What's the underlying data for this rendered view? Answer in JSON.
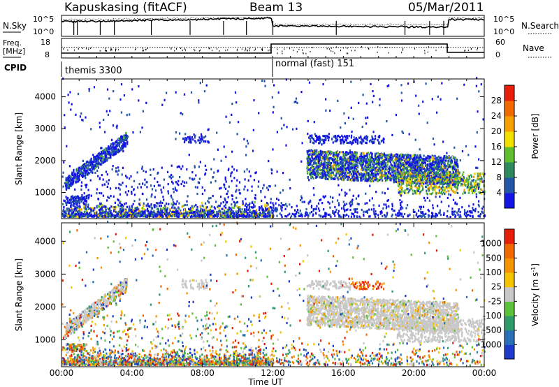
{
  "header": {
    "station": "Kapuskasing (fitACF)",
    "beam": "Beam 13",
    "date": "05/Mar/2011"
  },
  "panels": {
    "noise": {
      "left_label": "N.Sky",
      "left_ticks": [
        "10^5",
        "10^0"
      ],
      "right_label": "N.Search",
      "right_ticks": [
        "10^5",
        "10^0"
      ]
    },
    "freq": {
      "left_label_1": "Freq.",
      "left_label_2": "[MHz]",
      "left_ticks": [
        "18",
        "8"
      ],
      "right_label": "Nave",
      "right_ticks": [
        "60",
        "0"
      ]
    },
    "cpid": {
      "label": "CPID",
      "mode_1": "themis 3300",
      "mode_2": "normal (fast) 151"
    }
  },
  "chart_data": [
    {
      "type": "heatmap",
      "title": "Power",
      "xlabel": "Time UT",
      "ylabel": "Slant Range [km]",
      "x_ticks": [
        "00:00",
        "04:00",
        "08:00",
        "12:00",
        "16:00",
        "20:00",
        "00:00"
      ],
      "y_ticks": [
        "1000",
        "2000",
        "3000",
        "4000"
      ],
      "xlim_hours": [
        0,
        24
      ],
      "ylim_km": [
        180,
        4560
      ],
      "colorbar": {
        "label": "Power [dB]",
        "ticks": [
          "4",
          "8",
          "12",
          "16",
          "20",
          "24",
          "28"
        ],
        "range": [
          0,
          30
        ],
        "colors": [
          "#1414e6",
          "#2456a8",
          "#2e8a5e",
          "#5fbf2e",
          "#f2df00",
          "#f6a000",
          "#f06a00",
          "#e61e0a"
        ]
      },
      "features": [
        {
          "t_start": 0.0,
          "t_end": 12.0,
          "range_km": [
            200,
            600
          ],
          "level": "low-medium",
          "density": "dense"
        },
        {
          "t_start": 0.2,
          "t_end": 3.7,
          "range_km": [
            600,
            3000
          ],
          "level": "low",
          "description": "rising echo band"
        },
        {
          "t_start": 6.8,
          "t_end": 8.3,
          "range_km": [
            2500,
            3000
          ],
          "level": "low"
        },
        {
          "t_start": 12.0,
          "t_end": 24.0,
          "range_km": [
            200,
            800
          ],
          "level": "low",
          "density": "sparse"
        },
        {
          "t_start": 13.9,
          "t_end": 22.5,
          "range_km": [
            1300,
            2400
          ],
          "level": "low-high",
          "description": "broad band"
        },
        {
          "t_start": 19.0,
          "t_end": 24.0,
          "range_km": [
            800,
            1600
          ],
          "level": "high"
        },
        {
          "t_start": 13.9,
          "t_end": 18.3,
          "range_km": [
            2450,
            2800
          ],
          "level": "low"
        }
      ]
    },
    {
      "type": "heatmap",
      "title": "Velocity",
      "xlabel": "Time UT",
      "ylabel": "Slant Range [km]",
      "x_ticks": [
        "00:00",
        "04:00",
        "08:00",
        "12:00",
        "16:00",
        "20:00",
        "00:00"
      ],
      "y_ticks": [
        "1000",
        "2000",
        "3000",
        "4000"
      ],
      "xlim_hours": [
        0,
        24
      ],
      "ylim_km": [
        180,
        4560
      ],
      "colorbar": {
        "label": "Velocity",
        "units": "[m s",
        "units_exp": "-1",
        "units_close": "]",
        "ticks": [
          "1000",
          "500",
          "100",
          "25",
          "-25",
          "-100",
          "-500",
          "-1000"
        ],
        "range": [
          -1200,
          1200
        ],
        "colors": [
          "#1e3ac8",
          "#2a70b8",
          "#2f9a6a",
          "#5bc23a",
          "#c8c8c8",
          "#f5c400",
          "#f59400",
          "#f06a00",
          "#e61e0a"
        ]
      },
      "features": [
        {
          "t_start": 0.0,
          "t_end": 12.0,
          "range_km": [
            200,
            600
          ],
          "level": "mixed",
          "density": "dense"
        },
        {
          "t_start": 0.8,
          "t_end": 4.0,
          "range_km": [
            1500,
            3000
          ],
          "level": "near-zero"
        },
        {
          "t_start": 12.0,
          "t_end": 24.0,
          "range_km": [
            1200,
            2700
          ],
          "level": "near-zero"
        },
        {
          "t_start": 16.4,
          "t_end": 18.2,
          "range_km": [
            2450,
            2800
          ],
          "level": "-500 to -1000"
        }
      ]
    }
  ]
}
